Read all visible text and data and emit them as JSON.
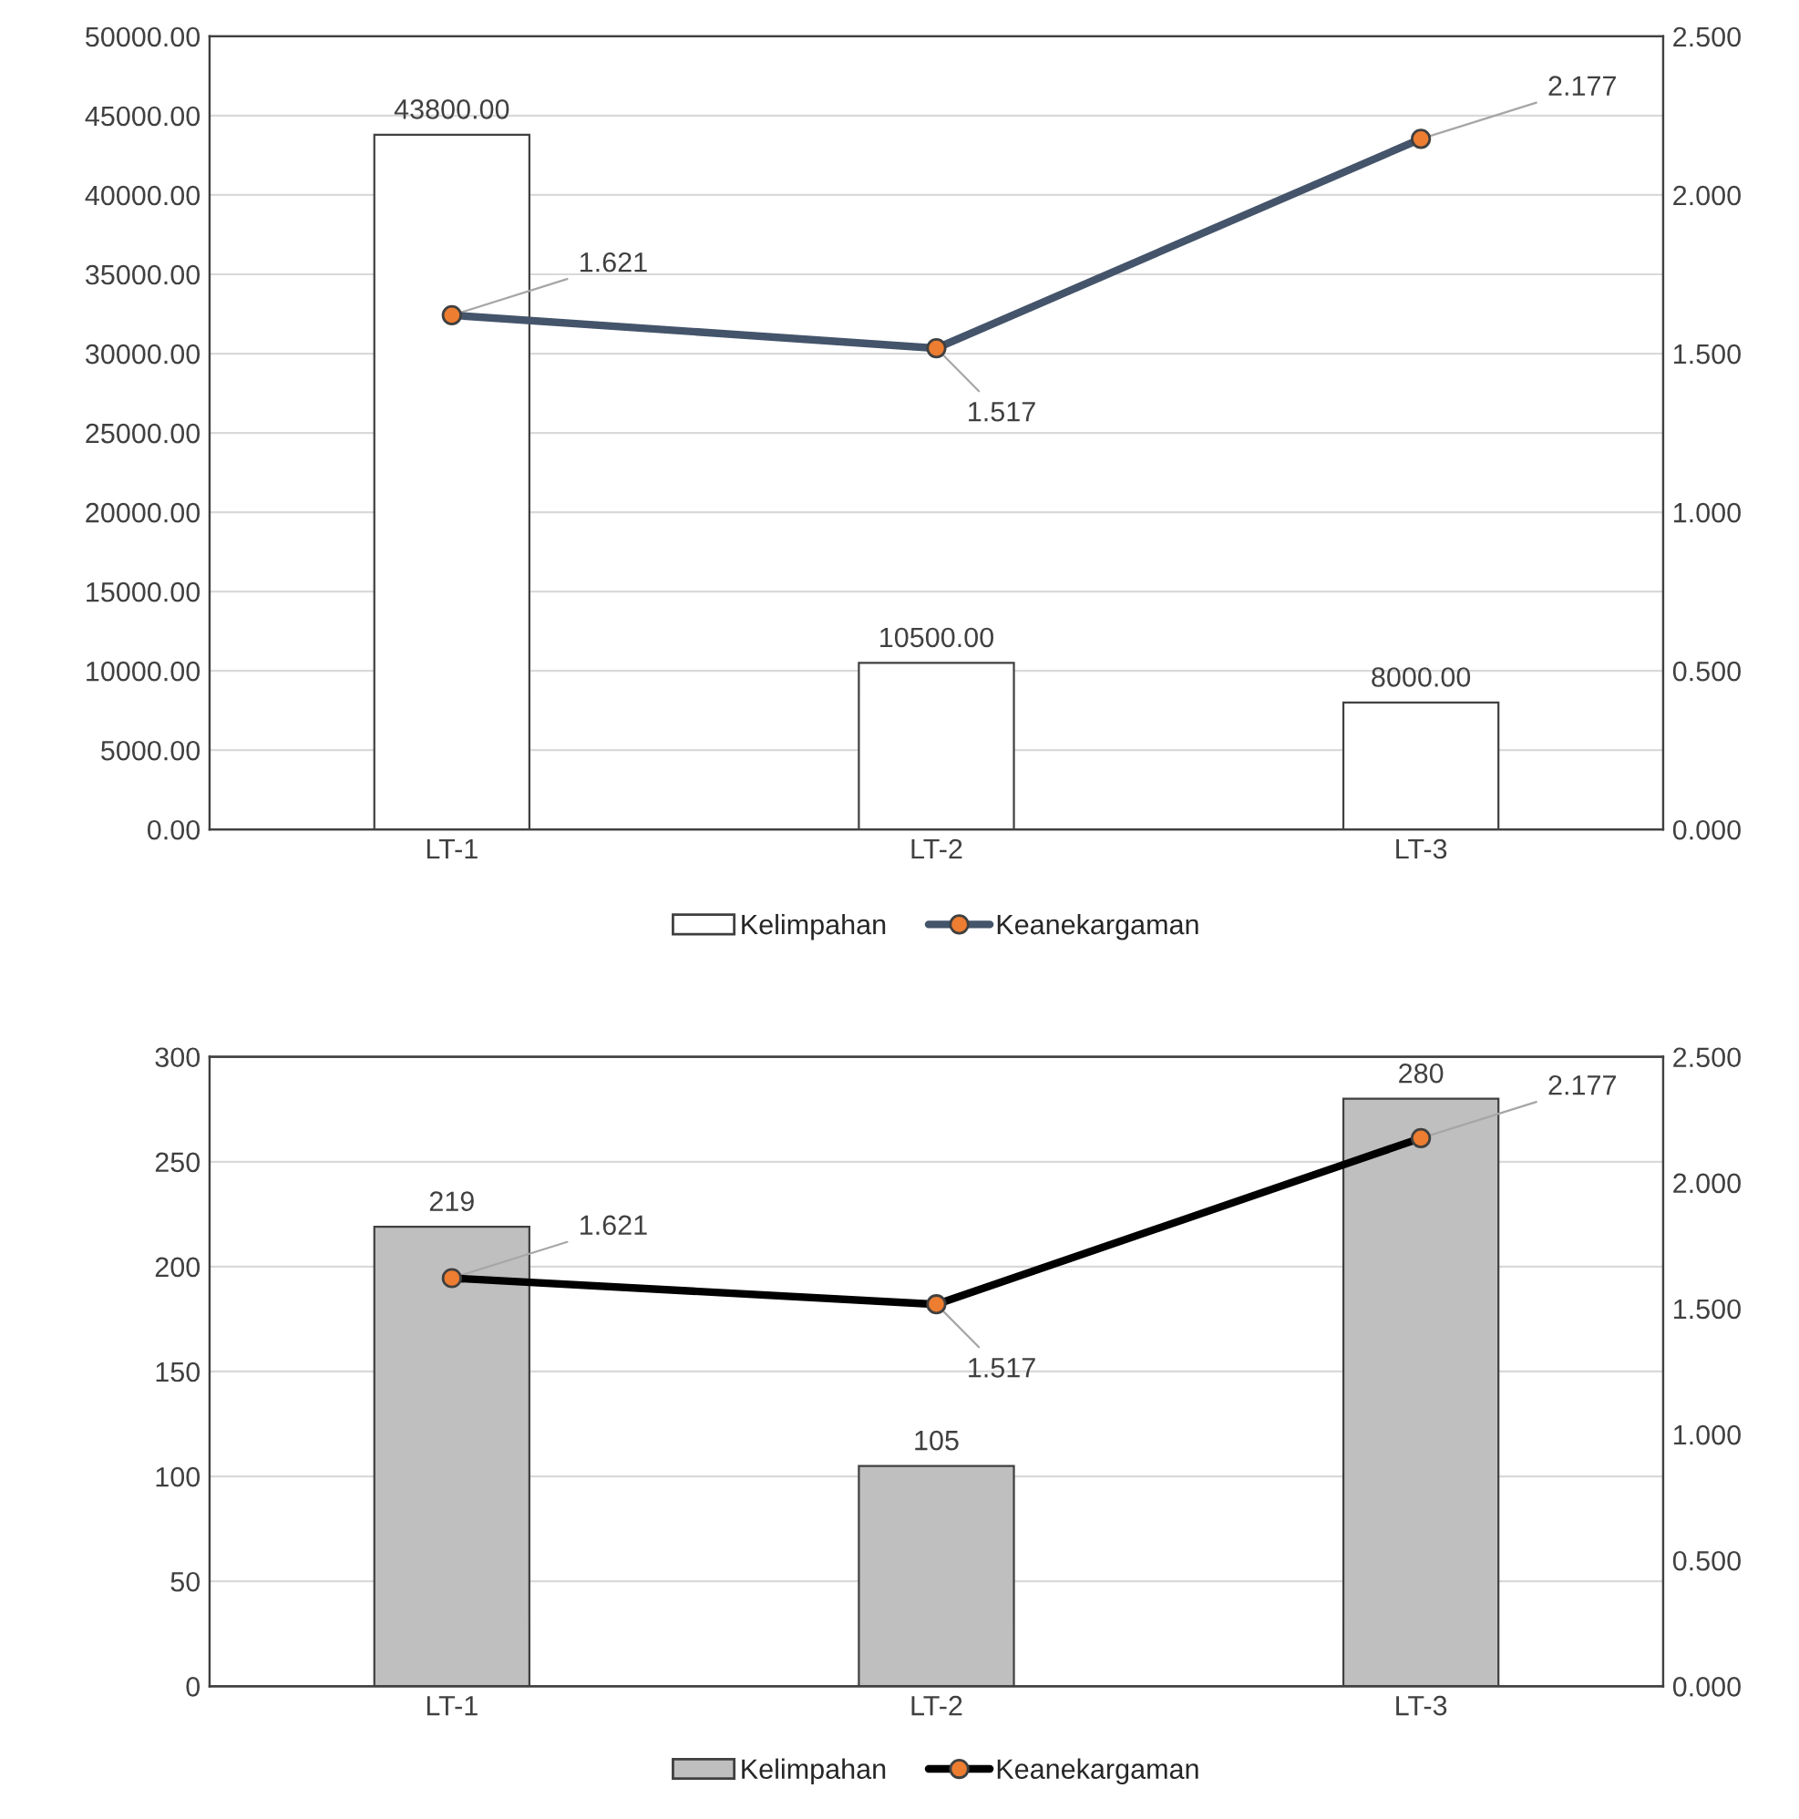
{
  "chart_data": [
    {
      "type": "bar",
      "categories": [
        "LT-1",
        "LT-2",
        "LT-3"
      ],
      "series": [
        {
          "name": "Kelimpahan",
          "color": "#ffffff",
          "values": [
            43800,
            10500,
            8000
          ],
          "value_labels": [
            "43800.00",
            "10500.00",
            "8000.00"
          ]
        },
        {
          "name": "Keanekargaman",
          "type": "line",
          "axis": "y2",
          "color": "#44546a",
          "values": [
            1.621,
            1.517,
            2.177
          ],
          "value_labels": [
            "1.621",
            "1.517",
            "2.177"
          ]
        }
      ],
      "ylim": [
        0,
        50000
      ],
      "yticks": [
        {
          "value": 0,
          "label": "0.00"
        },
        {
          "value": 5000,
          "label": "5000.00"
        },
        {
          "value": 10000,
          "label": "10000.00"
        },
        {
          "value": 15000,
          "label": "15000.00"
        },
        {
          "value": 20000,
          "label": "20000.00"
        },
        {
          "value": 25000,
          "label": "25000.00"
        },
        {
          "value": 30000,
          "label": "30000.00"
        },
        {
          "value": 35000,
          "label": "35000.00"
        },
        {
          "value": 40000,
          "label": "40000.00"
        },
        {
          "value": 45000,
          "label": "45000.00"
        },
        {
          "value": 50000,
          "label": "50000.00"
        }
      ],
      "y2lim": [
        0,
        2.5
      ],
      "y2ticks": [
        {
          "value": 0,
          "label": "0.000"
        },
        {
          "value": 0.5,
          "label": "0.500"
        },
        {
          "value": 1,
          "label": "1.000"
        },
        {
          "value": 1.5,
          "label": "1.500"
        },
        {
          "value": 2,
          "label": "2.000"
        },
        {
          "value": 2.5,
          "label": "2.500"
        }
      ],
      "grid": "y",
      "legend": "bottom",
      "marker": "circle"
    },
    {
      "type": "bar",
      "categories": [
        "LT-1",
        "LT-2",
        "LT-3"
      ],
      "series": [
        {
          "name": "Kelimpahan",
          "color": "#bfbfbf",
          "values": [
            219,
            105,
            280
          ],
          "value_labels": [
            "219",
            "105",
            "280"
          ]
        },
        {
          "name": "Keanekargaman",
          "type": "line",
          "axis": "y2",
          "color": "#000000",
          "values": [
            1.621,
            1.517,
            2.177
          ],
          "value_labels": [
            "1.621",
            "1.517",
            "2.177"
          ]
        }
      ],
      "ylim": [
        0,
        300
      ],
      "yticks": [
        0,
        50,
        100,
        150,
        200,
        250,
        300
      ],
      "y2lim": [
        0,
        2.5
      ],
      "y2ticks": [
        {
          "value": 0,
          "label": "0.000"
        },
        {
          "value": 0.5,
          "label": "0.500"
        },
        {
          "value": 1,
          "label": "1.000"
        },
        {
          "value": 1.5,
          "label": "1.500"
        },
        {
          "value": 2,
          "label": "2.000"
        },
        {
          "value": 2.5,
          "label": "2.500"
        }
      ],
      "grid": "y",
      "legend": "bottom",
      "marker": "circle"
    }
  ]
}
